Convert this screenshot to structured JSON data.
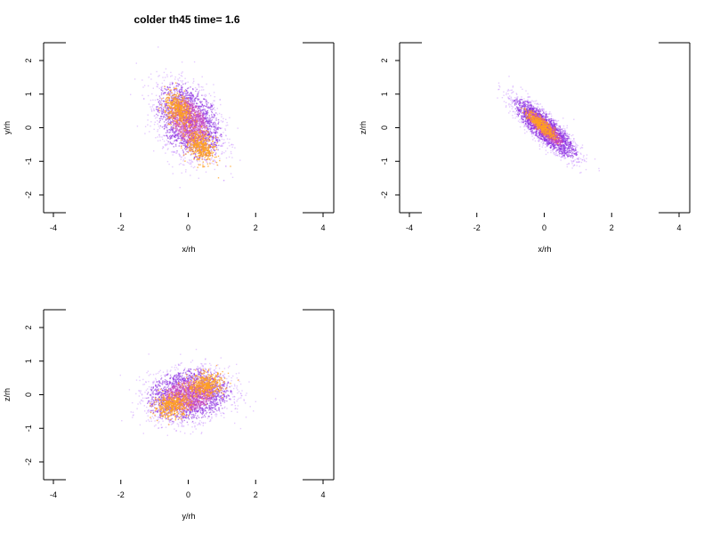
{
  "title": "colder th45 time= 1.6",
  "colors": {
    "low": "#b46bff",
    "mid": "#8a2be2",
    "high": "#ffa020",
    "frame": "#000000"
  },
  "chart_data": [
    {
      "type": "scatter",
      "title": "colder th45 time= 1.6",
      "xlabel": "x/rh",
      "ylabel": "y/rh",
      "xlim": [
        -4.6,
        4.6
      ],
      "ylim": [
        -2.5,
        2.5
      ],
      "xticks": [
        "-4",
        "-2",
        "0",
        "2",
        "4"
      ],
      "yticks": [
        "-2",
        "-1",
        "0",
        "1",
        "2"
      ],
      "grid": false,
      "cloud": {
        "cx": 0.0,
        "cy": 0.2,
        "sx": 0.46,
        "sy": 0.55,
        "rho": -0.35,
        "hot": [
          {
            "x": -0.3,
            "y": 0.55
          },
          {
            "x": 0.35,
            "y": -0.55
          }
        ]
      }
    },
    {
      "type": "scatter",
      "xlabel": "x/rh",
      "ylabel": "z/rh",
      "xlim": [
        -4.6,
        4.6
      ],
      "ylim": [
        -2.5,
        2.5
      ],
      "xticks": [
        "-4",
        "-2",
        "0",
        "2",
        "4"
      ],
      "yticks": [
        "-2",
        "-1",
        "0",
        "1",
        "2"
      ],
      "grid": false,
      "cloud": {
        "cx": 0.0,
        "cy": 0.0,
        "sx": 0.45,
        "sy": 0.42,
        "rho": -0.85,
        "hot": [
          {
            "x": -0.1,
            "y": 0.1
          }
        ]
      }
    },
    {
      "type": "scatter",
      "xlabel": "y/rh",
      "ylabel": "z/rh",
      "xlim": [
        -4.6,
        4.6
      ],
      "ylim": [
        -2.5,
        2.5
      ],
      "xticks": [
        "-4",
        "-2",
        "0",
        "2",
        "4"
      ],
      "yticks": [
        "-2",
        "-1",
        "0",
        "1",
        "2"
      ],
      "grid": false,
      "cloud": {
        "cx": 0.0,
        "cy": 0.0,
        "sx": 0.6,
        "sy": 0.38,
        "rho": 0.15,
        "hot": [
          {
            "x": -0.5,
            "y": -0.3
          },
          {
            "x": 0.5,
            "y": 0.3
          }
        ]
      }
    }
  ]
}
